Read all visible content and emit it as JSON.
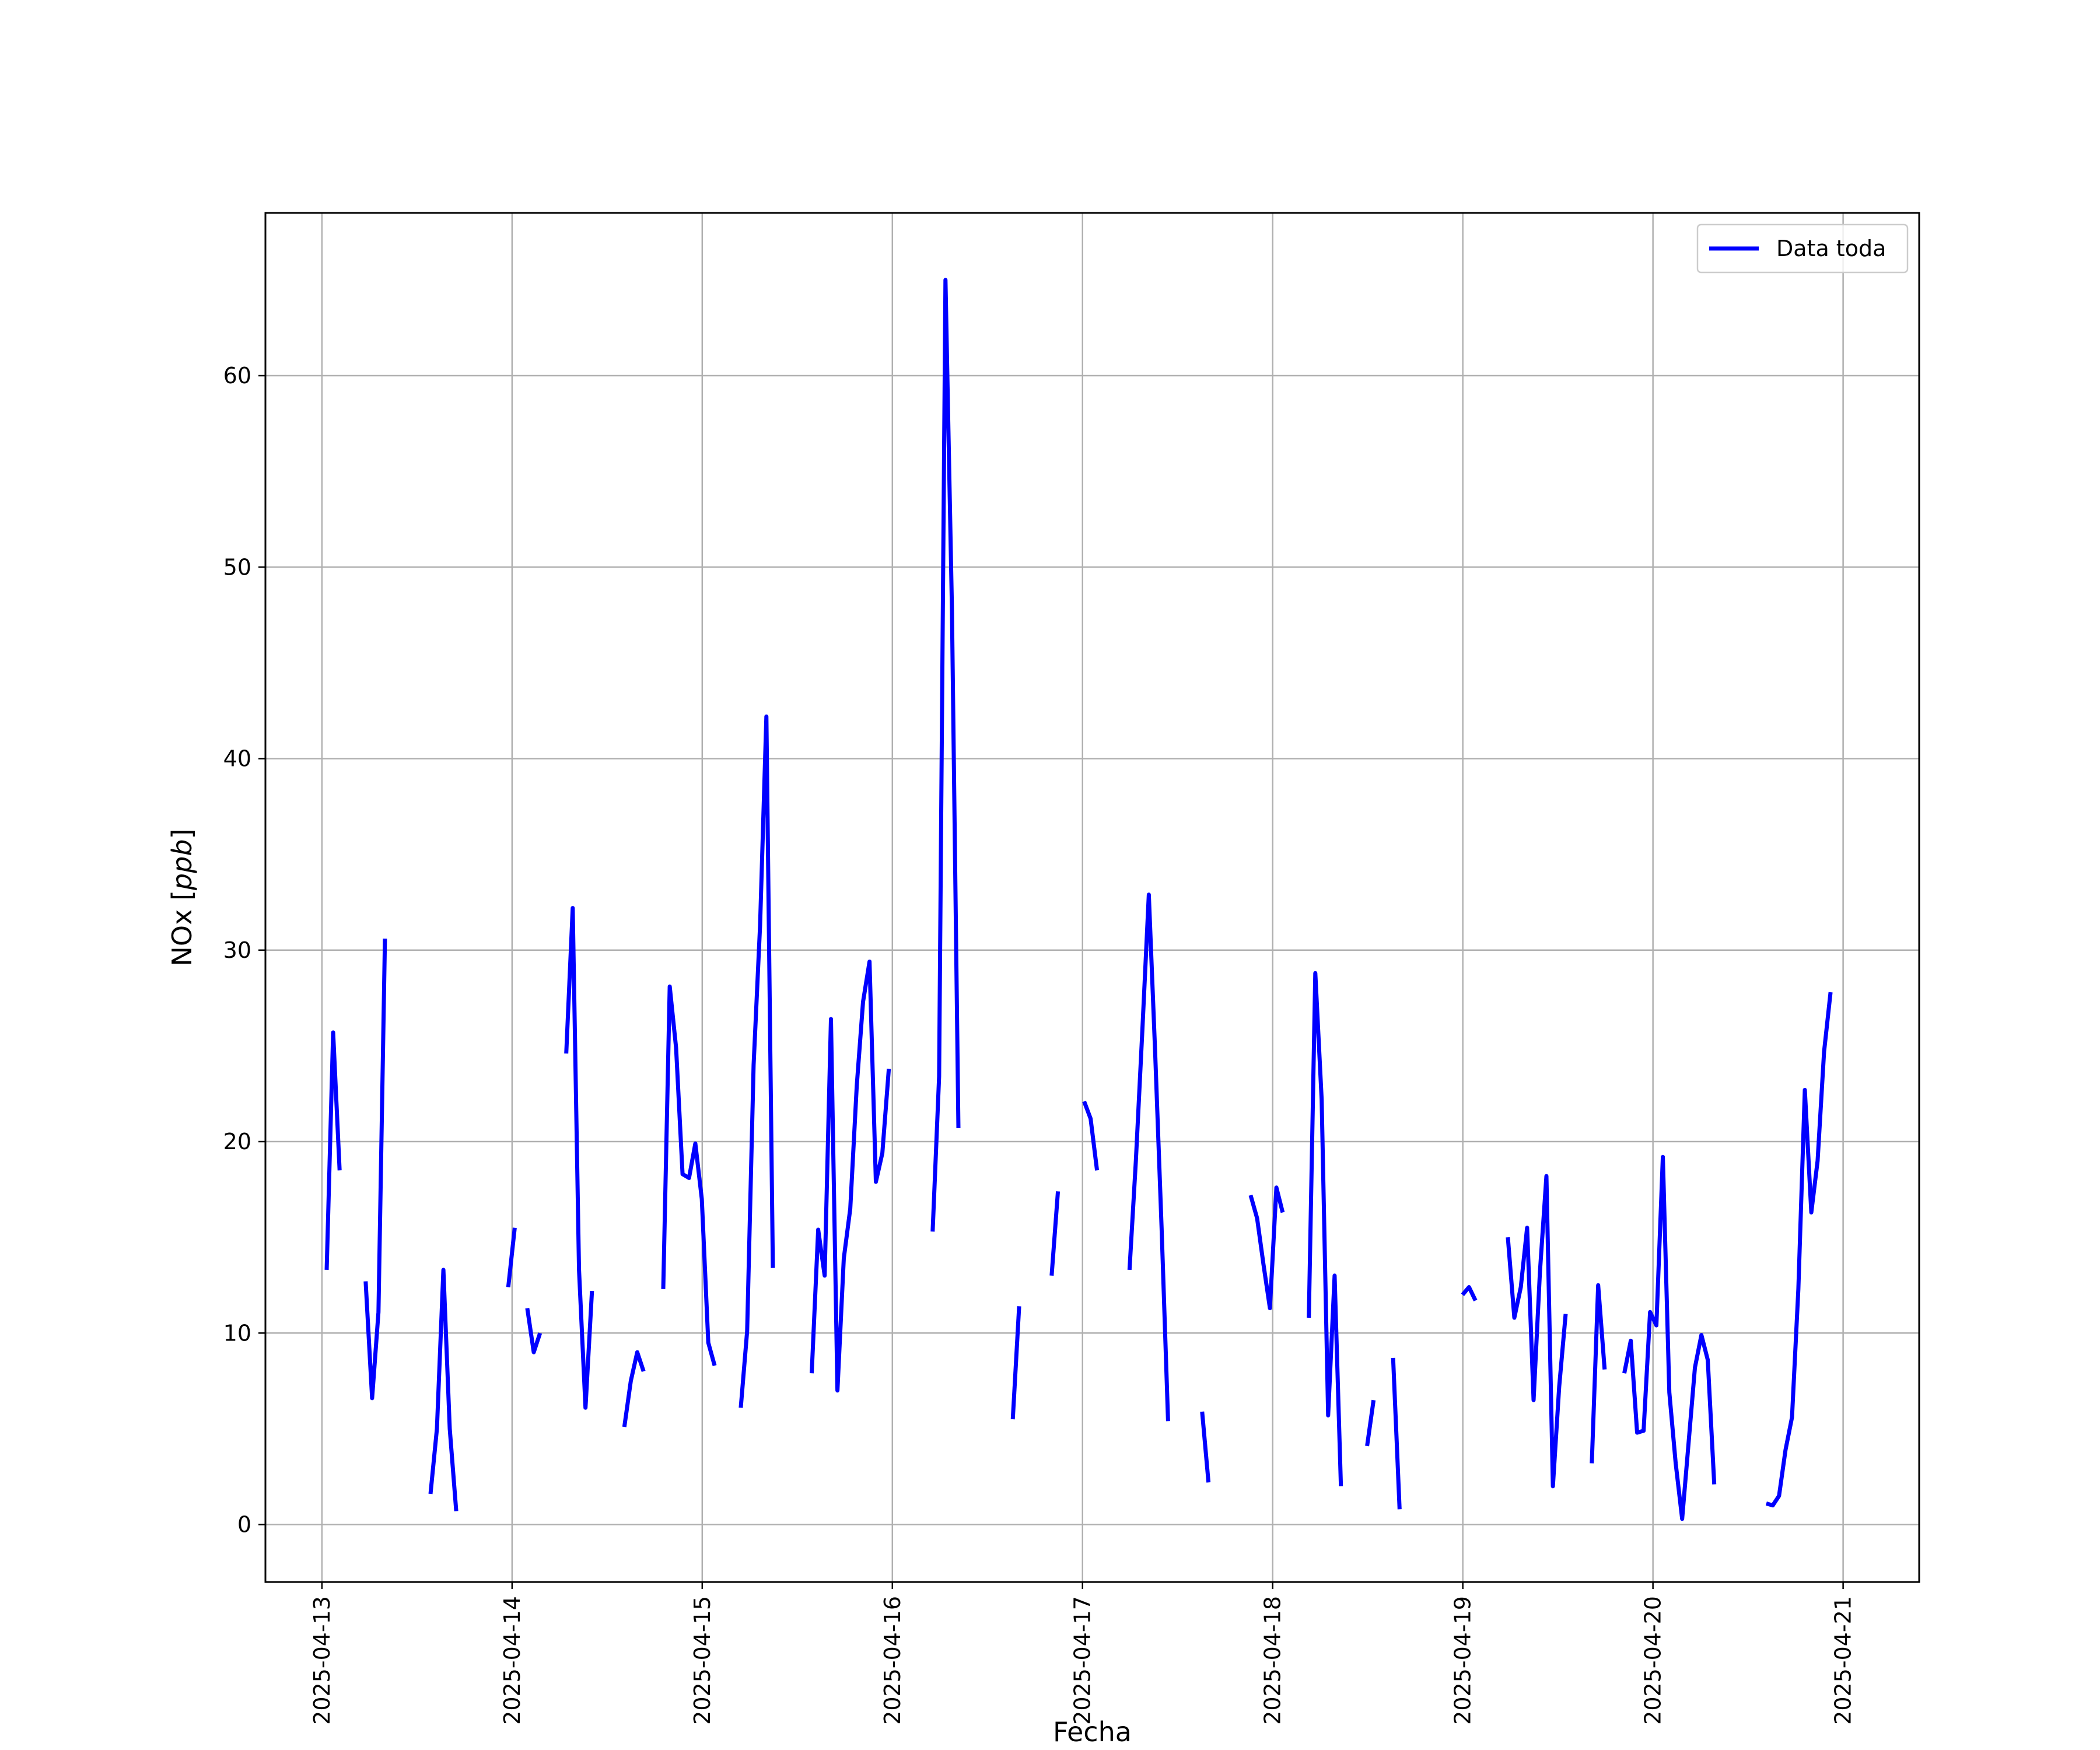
{
  "chart_data": {
    "type": "line",
    "title": "",
    "xlabel": "Fecha",
    "ylabel_text": "NOx ",
    "ylabel_unit": "ppb",
    "x_ticks": [
      "2025-04-13",
      "2025-04-14",
      "2025-04-15",
      "2025-04-16",
      "2025-04-17",
      "2025-04-18",
      "2025-04-19",
      "2025-04-20",
      "2025-04-21"
    ],
    "y_ticks": [
      0,
      10,
      20,
      30,
      40,
      50,
      60
    ],
    "xlim": [
      "2025-04-12T16:52",
      "2025-04-21T09:36"
    ],
    "ylim": [
      -3,
      68.5
    ],
    "grid": true,
    "legend_position": "top-right",
    "colors": {
      "series": "#0000ff",
      "grid": "#b0b0b0",
      "axes": "#000000"
    },
    "series": [
      {
        "name": "Data toda",
        "segments": [
          [
            [
              "2025-04-13T00:36",
              13.3
            ],
            [
              "2025-04-13T01:25",
              25.7
            ],
            [
              "2025-04-13T02:14",
              18.5
            ]
          ],
          [
            [
              "2025-04-13T05:31",
              12.7
            ],
            [
              "2025-04-13T06:20",
              6.6
            ],
            [
              "2025-04-13T07:08",
              11.1
            ],
            [
              "2025-04-13T07:57",
              30.6
            ]
          ],
          [
            [
              "2025-04-13T13:42",
              1.6
            ],
            [
              "2025-04-13T14:31",
              5.0
            ],
            [
              "2025-04-13T15:20",
              13.3
            ],
            [
              "2025-04-13T16:08",
              5.0
            ],
            [
              "2025-04-13T16:57",
              0.7
            ]
          ],
          [
            [
              "2025-04-13T23:31",
              12.4
            ],
            [
              "2025-04-14T00:20",
              15.5
            ]
          ],
          [
            [
              "2025-04-14T01:55",
              11.3
            ],
            [
              "2025-04-14T02:44",
              9.0
            ],
            [
              "2025-04-14T03:32",
              10.0
            ]
          ],
          [
            [
              "2025-04-14T06:50",
              24.6
            ],
            [
              "2025-04-14T07:39",
              32.2
            ],
            [
              "2025-04-14T08:27",
              13.3
            ],
            [
              "2025-04-14T09:16",
              6.1
            ],
            [
              "2025-04-14T10:05",
              12.2
            ]
          ],
          [
            [
              "2025-04-14T14:10",
              5.1
            ],
            [
              "2025-04-14T14:59",
              7.5
            ],
            [
              "2025-04-14T15:48",
              9.0
            ],
            [
              "2025-04-14T16:36",
              8.0
            ]
          ],
          [
            [
              "2025-04-14T19:05",
              12.3
            ],
            [
              "2025-04-14T19:54",
              28.1
            ],
            [
              "2025-04-14T20:42",
              24.9
            ],
            [
              "2025-04-14T21:31",
              18.3
            ],
            [
              "2025-04-14T22:20",
              18.1
            ],
            [
              "2025-04-14T23:08",
              19.9
            ],
            [
              "2025-04-14T23:57",
              17.0
            ],
            [
              "2025-04-15T00:46",
              9.5
            ],
            [
              "2025-04-15T01:34",
              8.3
            ]
          ],
          [
            [
              "2025-04-15T04:52",
              6.1
            ],
            [
              "2025-04-15T05:40",
              10.1
            ],
            [
              "2025-04-15T06:29",
              24.0
            ],
            [
              "2025-04-15T07:18",
              31.3
            ],
            [
              "2025-04-15T08:06",
              42.2
            ],
            [
              "2025-04-15T08:55",
              13.4
            ]
          ],
          [
            [
              "2025-04-15T13:49",
              7.9
            ],
            [
              "2025-04-15T14:38",
              15.4
            ],
            [
              "2025-04-15T15:27",
              13.0
            ],
            [
              "2025-04-15T16:15",
              26.4
            ],
            [
              "2025-04-15T17:04",
              7.0
            ],
            [
              "2025-04-15T17:52",
              13.9
            ],
            [
              "2025-04-15T18:41",
              16.5
            ],
            [
              "2025-04-15T19:30",
              22.9
            ],
            [
              "2025-04-15T20:18",
              27.3
            ],
            [
              "2025-04-15T21:07",
              29.4
            ],
            [
              "2025-04-15T21:55",
              17.9
            ],
            [
              "2025-04-15T22:44",
              19.4
            ],
            [
              "2025-04-15T23:33",
              23.8
            ]
          ],
          [
            [
              "2025-04-16T05:05",
              15.3
            ],
            [
              "2025-04-16T05:54",
              23.4
            ],
            [
              "2025-04-16T06:42",
              65.0
            ],
            [
              "2025-04-16T07:31",
              47.8
            ],
            [
              "2025-04-16T08:20",
              20.7
            ]
          ],
          [
            [
              "2025-04-16T15:12",
              5.5
            ],
            [
              "2025-04-16T16:00",
              11.4
            ]
          ],
          [
            [
              "2025-04-16T20:06",
              13.0
            ],
            [
              "2025-04-16T20:54",
              17.4
            ]
          ],
          [
            [
              "2025-04-17T00:12",
              22.1
            ],
            [
              "2025-04-17T01:01",
              21.2
            ],
            [
              "2025-04-17T01:50",
              18.5
            ]
          ],
          [
            [
              "2025-04-17T05:56",
              13.3
            ],
            [
              "2025-04-17T06:44",
              19.0
            ],
            [
              "2025-04-17T07:33",
              25.8
            ],
            [
              "2025-04-17T08:22",
              32.9
            ],
            [
              "2025-04-17T09:10",
              24.7
            ],
            [
              "2025-04-17T09:59",
              15.5
            ],
            [
              "2025-04-17T10:48",
              5.4
            ]
          ],
          [
            [
              "2025-04-17T15:06",
              5.9
            ],
            [
              "2025-04-17T15:54",
              2.2
            ]
          ],
          [
            [
              "2025-04-17T21:13",
              17.2
            ],
            [
              "2025-04-17T22:02",
              16.0
            ],
            [
              "2025-04-17T22:50",
              13.6
            ],
            [
              "2025-04-17T23:39",
              11.3
            ],
            [
              "2025-04-18T00:28",
              17.6
            ],
            [
              "2025-04-18T01:16",
              16.3
            ]
          ],
          [
            [
              "2025-04-18T04:34",
              10.8
            ],
            [
              "2025-04-18T05:23",
              28.8
            ],
            [
              "2025-04-18T06:11",
              22.2
            ],
            [
              "2025-04-18T07:00",
              5.7
            ],
            [
              "2025-04-18T07:49",
              13.0
            ],
            [
              "2025-04-18T08:37",
              2.0
            ]
          ],
          [
            [
              "2025-04-18T11:55",
              4.1
            ],
            [
              "2025-04-18T12:44",
              6.5
            ]
          ],
          [
            [
              "2025-04-18T15:12",
              8.7
            ],
            [
              "2025-04-18T16:01",
              0.8
            ]
          ],
          [
            [
              "2025-04-18T23:58",
              12.0
            ],
            [
              "2025-04-19T00:47",
              12.4
            ],
            [
              "2025-04-19T01:36",
              11.7
            ]
          ],
          [
            [
              "2025-04-19T05:41",
              15.0
            ],
            [
              "2025-04-19T06:30",
              10.8
            ],
            [
              "2025-04-19T07:19",
              12.4
            ],
            [
              "2025-04-19T08:07",
              15.5
            ],
            [
              "2025-04-19T08:56",
              6.5
            ],
            [
              "2025-04-19T09:44",
              13.2
            ],
            [
              "2025-04-19T10:33",
              18.2
            ],
            [
              "2025-04-19T11:22",
              2.0
            ],
            [
              "2025-04-19T12:10",
              7.2
            ],
            [
              "2025-04-19T12:59",
              11.0
            ]
          ],
          [
            [
              "2025-04-19T16:17",
              3.2
            ],
            [
              "2025-04-19T17:05",
              12.5
            ],
            [
              "2025-04-19T17:54",
              8.1
            ]
          ],
          [
            [
              "2025-04-19T20:23",
              7.9
            ],
            [
              "2025-04-19T21:12",
              9.6
            ],
            [
              "2025-04-19T22:00",
              4.8
            ],
            [
              "2025-04-19T22:49",
              4.9
            ],
            [
              "2025-04-19T23:38",
              11.1
            ],
            [
              "2025-04-20T00:26",
              10.4
            ],
            [
              "2025-04-20T01:15",
              19.2
            ],
            [
              "2025-04-20T02:04",
              6.9
            ],
            [
              "2025-04-20T02:52",
              3.2
            ],
            [
              "2025-04-20T03:41",
              0.3
            ],
            [
              "2025-04-20T04:30",
              4.3
            ],
            [
              "2025-04-20T05:18",
              8.2
            ],
            [
              "2025-04-20T06:07",
              9.9
            ],
            [
              "2025-04-20T06:55",
              8.6
            ],
            [
              "2025-04-20T07:44",
              2.1
            ]
          ],
          [
            [
              "2025-04-20T14:18",
              1.1
            ],
            [
              "2025-04-20T15:07",
              1.0
            ],
            [
              "2025-04-20T15:55",
              1.5
            ],
            [
              "2025-04-20T16:44",
              3.9
            ],
            [
              "2025-04-20T17:33",
              5.6
            ],
            [
              "2025-04-20T18:21",
              12.3
            ],
            [
              "2025-04-20T19:10",
              22.7
            ],
            [
              "2025-04-20T19:59",
              16.3
            ],
            [
              "2025-04-20T20:47",
              19.0
            ],
            [
              "2025-04-20T21:36",
              24.7
            ],
            [
              "2025-04-20T22:25",
              27.8
            ]
          ]
        ]
      }
    ]
  }
}
